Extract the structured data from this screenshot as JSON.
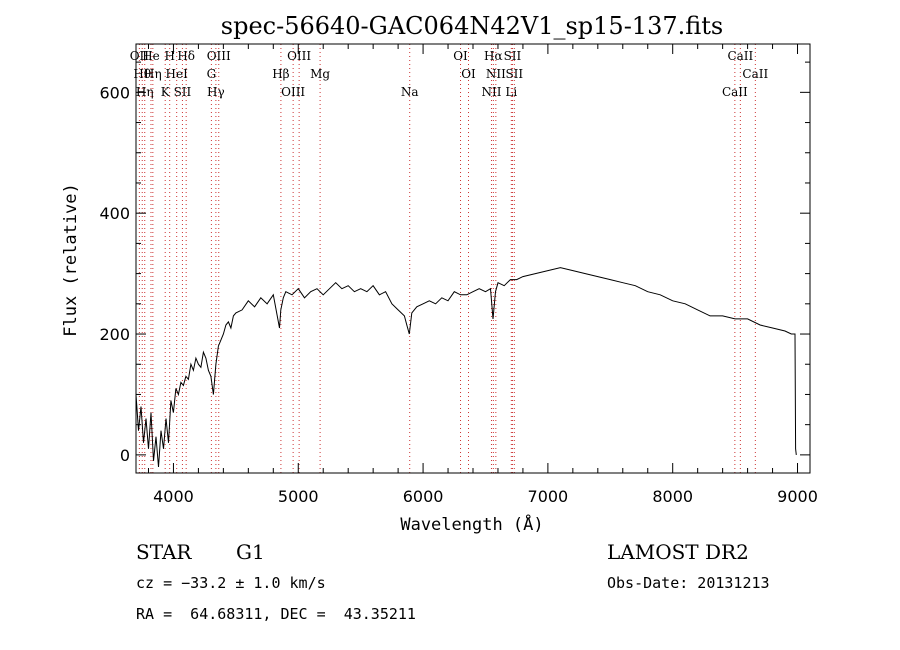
{
  "chart_data": {
    "type": "line",
    "title": "spec-56640-GAC064N42V1_sp15-137.fits",
    "xlabel": "Wavelength (Å)",
    "ylabel": "Flux (relative)",
    "xlim": [
      3700,
      9100
    ],
    "ylim": [
      -30,
      680
    ],
    "x_ticks": [
      4000,
      5000,
      6000,
      7000,
      8000,
      9000
    ],
    "x_tick_labels": [
      "4000",
      "5000",
      "6000",
      "7000",
      "8000",
      "9000"
    ],
    "y_ticks": [
      0,
      200,
      400,
      600
    ],
    "y_tick_labels": [
      "0",
      "200",
      "400",
      "600"
    ],
    "grid": false,
    "line_color": "#000000",
    "marker_color": "#cc3333",
    "series": [
      {
        "x": [
          3700,
          3720,
          3740,
          3760,
          3780,
          3800,
          3820,
          3840,
          3860,
          3880,
          3900,
          3920,
          3940,
          3960,
          3980,
          4000,
          4020,
          4040,
          4060,
          4080,
          4100,
          4120,
          4140,
          4160,
          4180,
          4200,
          4220,
          4240,
          4260,
          4280,
          4300,
          4320,
          4340,
          4360,
          4380,
          4400,
          4420,
          4440,
          4460,
          4480,
          4500,
          4550,
          4600,
          4650,
          4700,
          4750,
          4800,
          4850,
          4860,
          4880,
          4900,
          4950,
          5000,
          5050,
          5100,
          5150,
          5200,
          5250,
          5300,
          5350,
          5400,
          5450,
          5500,
          5550,
          5600,
          5650,
          5700,
          5750,
          5800,
          5850,
          5870,
          5890,
          5910,
          5950,
          6000,
          6050,
          6100,
          6150,
          6200,
          6250,
          6300,
          6350,
          6400,
          6450,
          6500,
          6540,
          6560,
          6580,
          6600,
          6650,
          6700,
          6750,
          6800,
          6900,
          7000,
          7100,
          7200,
          7300,
          7400,
          7500,
          7600,
          7700,
          7800,
          7900,
          8000,
          8100,
          8200,
          8300,
          8400,
          8500,
          8600,
          8700,
          8800,
          8900,
          8950,
          8980,
          8985,
          8990
        ],
        "y": [
          100,
          40,
          80,
          20,
          60,
          10,
          70,
          -10,
          30,
          -20,
          40,
          10,
          60,
          20,
          90,
          70,
          110,
          100,
          120,
          115,
          130,
          125,
          150,
          140,
          160,
          150,
          145,
          170,
          160,
          140,
          130,
          100,
          150,
          180,
          190,
          200,
          215,
          220,
          210,
          230,
          235,
          240,
          255,
          245,
          260,
          250,
          265,
          210,
          240,
          260,
          270,
          265,
          275,
          260,
          270,
          275,
          265,
          275,
          285,
          275,
          280,
          270,
          275,
          270,
          280,
          265,
          270,
          250,
          240,
          230,
          215,
          200,
          235,
          245,
          250,
          255,
          250,
          260,
          255,
          270,
          265,
          265,
          270,
          275,
          270,
          275,
          225,
          270,
          285,
          280,
          290,
          290,
          295,
          300,
          305,
          310,
          305,
          300,
          295,
          290,
          285,
          280,
          270,
          265,
          255,
          250,
          240,
          230,
          230,
          225,
          225,
          215,
          210,
          205,
          200,
          200,
          10,
          0
        ]
      }
    ],
    "line_markers": [
      {
        "wavelength": 3727,
        "label": "OII"
      },
      {
        "wavelength": 3750,
        "label": "Hθ"
      },
      {
        "wavelength": 3770,
        "label": "Hη"
      },
      {
        "wavelength": 3820,
        "label": "He"
      },
      {
        "wavelength": 3835,
        "label": "Hη"
      },
      {
        "wavelength": 3934,
        "label": "K"
      },
      {
        "wavelength": 3970,
        "label": "H"
      },
      {
        "wavelength": 4026,
        "label": "HeI"
      },
      {
        "wavelength": 4072,
        "label": "SII"
      },
      {
        "wavelength": 4102,
        "label": "Hδ"
      },
      {
        "wavelength": 4304,
        "label": "G"
      },
      {
        "wavelength": 4340,
        "label": "Hγ"
      },
      {
        "wavelength": 4363,
        "label": "OIII"
      },
      {
        "wavelength": 4861,
        "label": "Hβ"
      },
      {
        "wavelength": 4959,
        "label": "OIII"
      },
      {
        "wavelength": 5007,
        "label": "OIII"
      },
      {
        "wavelength": 5175,
        "label": "Mg"
      },
      {
        "wavelength": 5893,
        "label": "Na"
      },
      {
        "wavelength": 6300,
        "label": "OI"
      },
      {
        "wavelength": 6364,
        "label": "OI"
      },
      {
        "wavelength": 6548,
        "label": "NII"
      },
      {
        "wavelength": 6563,
        "label": "Hα"
      },
      {
        "wavelength": 6583,
        "label": "NII"
      },
      {
        "wavelength": 6707,
        "label": "Li"
      },
      {
        "wavelength": 6716,
        "label": "SII"
      },
      {
        "wavelength": 6731,
        "label": "SII"
      },
      {
        "wavelength": 8498,
        "label": "CaII"
      },
      {
        "wavelength": 8542,
        "label": "CaII"
      },
      {
        "wavelength": 8662,
        "label": "CaII"
      }
    ]
  },
  "info": {
    "class": "STAR",
    "subclass": "G1",
    "survey": "LAMOST DR2",
    "cz": "cz = −33.2 ± 1.0 km/s",
    "obs_date": "Obs-Date: 20131213",
    "coords": "RA =  64.68311, DEC =  43.35211"
  }
}
